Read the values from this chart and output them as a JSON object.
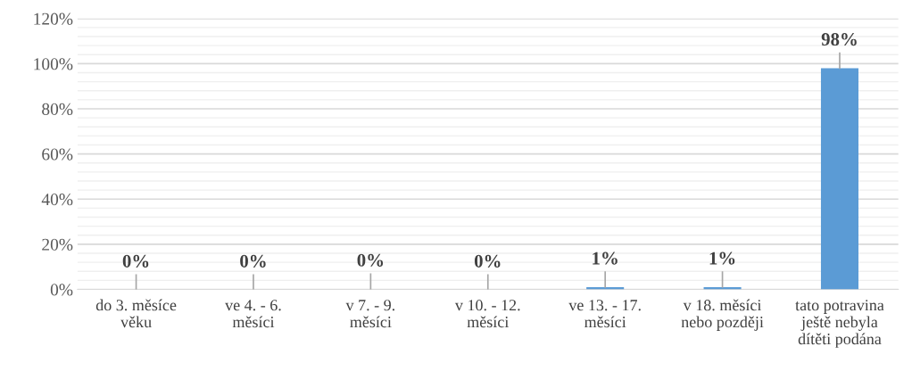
{
  "chart_data": {
    "type": "bar",
    "categories": [
      "do 3. měsíce\nvěku",
      "ve 4. - 6.\nměsíci",
      "v 7. - 9.\nměsíci",
      "v 10. - 12.\nměsíci",
      "ve 13. - 17.\nměsíci",
      "v 18. měsíci\nnebo později",
      "tato potravina\nještě nebyla\ndítěti podána"
    ],
    "values": [
      0,
      0,
      0,
      0,
      1,
      1,
      98
    ],
    "errors": [
      [
        0,
        6.4
      ],
      [
        0,
        6.4
      ],
      [
        0,
        6.8
      ],
      [
        0,
        6.4
      ],
      [
        1,
        7.7
      ],
      [
        1,
        7.7
      ],
      [
        98,
        104.7
      ]
    ],
    "value_labels": [
      "0%",
      "0%",
      "0%",
      "0%",
      "1%",
      "1%",
      "98%"
    ],
    "color": "#5b9bd5",
    "ylim": [
      0,
      120
    ],
    "yticks": [
      {
        "value": 0,
        "label": "0%"
      },
      {
        "value": 20,
        "label": "20%"
      },
      {
        "value": 40,
        "label": "40%"
      },
      {
        "value": 60,
        "label": "60%"
      },
      {
        "value": 80,
        "label": "80%"
      },
      {
        "value": 100,
        "label": "100%"
      },
      {
        "value": 120,
        "label": "120%"
      }
    ],
    "grid": "y"
  }
}
